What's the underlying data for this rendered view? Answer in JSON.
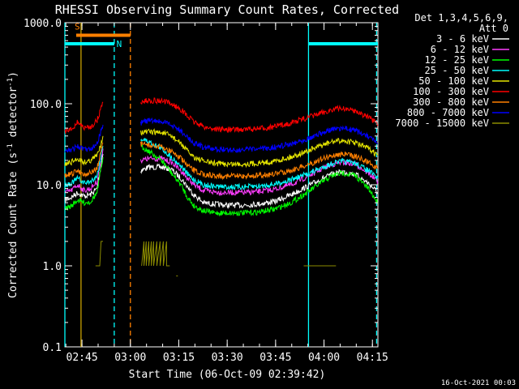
{
  "chart_data": {
    "type": "line",
    "title": "RHESSI Observing Summary Count Rates, Corrected",
    "xlabel": "Start Time (06-Oct-09 02:39:42)",
    "ylabel": "Corrected Count Rate (s⁻¹ detector⁻¹)",
    "ylabel_parts": {
      "main": "Corrected Count Rate (s",
      "exp1": "-1",
      "mid": " detector",
      "exp2": "-1",
      "end": ")"
    },
    "yscale": "log",
    "ylim": [
      0.1,
      1000
    ],
    "xlim_minutes": [
      0,
      97
    ],
    "grid": false,
    "legend_position": "top-right",
    "legend_header": [
      "Det 1,3,4,5,6,9,",
      "Att 0"
    ],
    "y_ticks": [
      {
        "value": 1000,
        "label": "1000.0"
      },
      {
        "value": 100,
        "label": "100.0"
      },
      {
        "value": 10,
        "label": "10.0"
      },
      {
        "value": 1,
        "label": "1.0"
      },
      {
        "value": 0.1,
        "label": "0.1"
      }
    ],
    "x_ticks": [
      {
        "minutes": 5.3,
        "label": "02:45"
      },
      {
        "minutes": 20.3,
        "label": "03:00"
      },
      {
        "minutes": 35.3,
        "label": "03:15"
      },
      {
        "minutes": 50.3,
        "label": "03:30"
      },
      {
        "minutes": 65.3,
        "label": "03:45"
      },
      {
        "minutes": 80.3,
        "label": "04:00"
      },
      {
        "minutes": 95.3,
        "label": "04:15"
      }
    ],
    "series": [
      {
        "name": "3 - 6 keV",
        "color": "#ffffff",
        "segments": [
          {
            "x": [
              0,
              2,
              4,
              6,
              8,
              10,
              11.8
            ],
            "y": [
              6.5,
              7.0,
              8.0,
              7.2,
              7.6,
              9.0,
              24
            ]
          },
          {
            "x": [
              23.5,
              26,
              30,
              33,
              36,
              38,
              40,
              43,
              46,
              50,
              55,
              60,
              65,
              70,
              75,
              80,
              83,
              86,
              90,
              94,
              97
            ],
            "y": [
              15.0,
              16.5,
              16.5,
              15.5,
              12.0,
              9.5,
              7.5,
              6.0,
              5.8,
              5.6,
              5.6,
              5.8,
              6.2,
              7.5,
              9.5,
              12.0,
              13.5,
              14.5,
              13.5,
              10.5,
              8.0
            ]
          }
        ]
      },
      {
        "name": "6 - 12 keV",
        "color": "#ff3dff",
        "segments": [
          {
            "x": [
              0,
              2,
              4,
              6,
              8,
              10,
              11.8
            ],
            "y": [
              8.0,
              8.5,
              10.0,
              8.5,
              9.0,
              11.0,
              28
            ]
          },
          {
            "x": [
              23.5,
              26,
              30,
              33,
              36,
              38,
              40,
              43,
              46,
              50,
              55,
              60,
              65,
              70,
              75,
              80,
              83,
              86,
              90,
              94,
              97
            ],
            "y": [
              20,
              21,
              21,
              19,
              15,
              12,
              10,
              8.5,
              8.2,
              8.0,
              8.0,
              8.2,
              8.8,
              10,
              12.5,
              16,
              18,
              19,
              18,
              14,
              11
            ]
          }
        ]
      },
      {
        "name": "12 - 25 keV",
        "color": "#00ff00",
        "segments": [
          {
            "x": [
              0,
              2,
              4,
              6,
              8,
              10,
              11.8
            ],
            "y": [
              5.0,
              5.5,
              6.5,
              6.0,
              6.2,
              8.0,
              22
            ]
          },
          {
            "x": [
              23.5,
              26,
              30,
              33,
              36,
              38,
              40,
              43,
              46,
              50,
              55,
              60,
              65,
              70,
              75,
              80,
              83,
              86,
              90,
              94,
              97
            ],
            "y": [
              30,
              26,
              20,
              14,
              10,
              7.0,
              5.5,
              4.8,
              4.5,
              4.5,
              4.5,
              4.6,
              5.0,
              6.0,
              8.0,
              11,
              13,
              14,
              13,
              9,
              6
            ]
          }
        ]
      },
      {
        "name": "25 - 50 keV",
        "color": "#00ffff",
        "segments": [
          {
            "x": [
              0,
              2,
              4,
              6,
              8,
              10,
              11.8
            ],
            "y": [
              10,
              10.5,
              12,
              10.5,
              11,
              13,
              30
            ]
          },
          {
            "x": [
              23.5,
              26,
              30,
              33,
              36,
              38,
              40,
              43,
              46,
              50,
              55,
              60,
              65,
              70,
              75,
              80,
              83,
              86,
              90,
              94,
              97
            ],
            "y": [
              37,
              34,
              28,
              22,
              17,
              13.5,
              11.5,
              10,
              9.6,
              9.4,
              9.4,
              9.6,
              10.2,
              11.5,
              13.5,
              16.5,
              18.5,
              19.5,
              18.5,
              15,
              12
            ]
          }
        ]
      },
      {
        "name": "50 - 100 keV",
        "color": "#e6e600",
        "segments": [
          {
            "x": [
              0,
              2,
              4,
              6,
              8,
              10,
              11.8
            ],
            "y": [
              18,
              19,
              21,
              19,
              20,
              23,
              40
            ]
          },
          {
            "x": [
              23.5,
              26,
              30,
              33,
              36,
              38,
              40,
              43,
              46,
              50,
              55,
              60,
              65,
              70,
              75,
              80,
              83,
              86,
              90,
              94,
              97
            ],
            "y": [
              44,
              45,
              44,
              40,
              32,
              26,
              22,
              19.5,
              18.5,
              18,
              18,
              18.5,
              19.5,
              22,
              26,
              31,
              34,
              35,
              33,
              28,
              23
            ]
          }
        ]
      },
      {
        "name": "100 - 300 keV",
        "color": "#ff0000",
        "segments": [
          {
            "x": [
              0,
              2,
              4,
              6,
              8,
              10,
              11.8
            ],
            "y": [
              45,
              48,
              60,
              50,
              52,
              62,
              105
            ]
          },
          {
            "x": [
              23.5,
              26,
              30,
              33,
              36,
              38,
              40,
              43,
              46,
              50,
              55,
              60,
              65,
              70,
              75,
              80,
              83,
              86,
              90,
              94,
              97
            ],
            "y": [
              105,
              110,
              108,
              100,
              85,
              70,
              60,
              52,
              49,
              48,
              48,
              49,
              52,
              58,
              67,
              78,
              85,
              88,
              82,
              68,
              55
            ]
          }
        ]
      },
      {
        "name": "300 - 800 keV",
        "color": "#ff8000",
        "segments": [
          {
            "x": [
              0,
              2,
              4,
              6,
              8,
              10,
              11.8
            ],
            "y": [
              13,
              13.5,
              15,
              13.5,
              14,
              16,
              33
            ]
          },
          {
            "x": [
              23.5,
              26,
              30,
              33,
              36,
              38,
              40,
              43,
              46,
              50,
              55,
              60,
              65,
              70,
              75,
              80,
              83,
              86,
              90,
              94,
              97
            ],
            "y": [
              32,
              31,
              29,
              26,
              21,
              17,
              15,
              13.5,
              13,
              12.8,
              12.8,
              13,
              13.6,
              15,
              17.5,
              21,
              23,
              24,
              22.5,
              19,
              16
            ]
          }
        ]
      },
      {
        "name": "800 - 7000 keV",
        "color": "#0000ff",
        "segments": [
          {
            "x": [
              0,
              2,
              4,
              6,
              8,
              10,
              11.8
            ],
            "y": [
              26,
              27,
              30,
              27,
              28,
              33,
              55
            ]
          },
          {
            "x": [
              23.5,
              26,
              30,
              33,
              36,
              38,
              40,
              43,
              46,
              50,
              55,
              60,
              65,
              70,
              75,
              80,
              83,
              86,
              90,
              94,
              97
            ],
            "y": [
              58,
              62,
              60,
              55,
              46,
              38,
              33,
              29,
              27.5,
              27,
              27,
              27.5,
              29,
              32,
              37,
              44,
              48,
              50,
              47,
              39,
              32
            ]
          }
        ]
      },
      {
        "name": "7000 - 15000 keV",
        "color": "#8c8c00",
        "segments": [
          {
            "x": [
              9.5,
              10.8,
              11.2,
              11.8
            ],
            "y": [
              1.0,
              1.0,
              2.0,
              2.0
            ]
          },
          {
            "x": [
              23.8,
              24.5,
              24.5,
              25.2,
              25.2,
              26,
              26,
              26.8,
              26.8,
              27.5,
              27.5,
              28.5,
              28.5,
              29.5,
              29.5,
              30.5,
              30.5,
              31.5,
              31.5,
              32.5
            ],
            "y": [
              1.0,
              2.0,
              1.0,
              2.0,
              1.0,
              2.0,
              1.0,
              2.0,
              1.0,
              2.0,
              1.0,
              2.0,
              1.0,
              2.0,
              1.0,
              2.0,
              1.0,
              2.0,
              1.0,
              1.0
            ]
          },
          {
            "x": [
              34.5,
              35
            ],
            "y": [
              0.75,
              0.75
            ]
          },
          {
            "x": [
              74,
              84
            ],
            "y": [
              1.0,
              1.0
            ]
          }
        ]
      }
    ],
    "night_intervals": [
      {
        "start": 0,
        "end": 15.3,
        "level": 550,
        "label": "",
        "color": "#00ffff"
      },
      {
        "start": 75.5,
        "end": 97,
        "level": 550,
        "label": "",
        "color": "#00ffff"
      }
    ],
    "saa_interval": {
      "start": 3.5,
      "end": 20.3,
      "level": 700,
      "color": "#ff8000"
    },
    "interval_labels": [
      {
        "text": "S",
        "minutes": 3.0,
        "value": 820,
        "color": "#ff8000"
      },
      {
        "text": "N",
        "minutes": 16.0,
        "value": 500,
        "color": "#00ffff"
      }
    ],
    "vertical_markers": [
      {
        "minutes": 0,
        "color": "#00ffff",
        "style": "solid"
      },
      {
        "minutes": 5.0,
        "color": "#c8a000",
        "style": "solid"
      },
      {
        "minutes": 15.3,
        "color": "#00ffff",
        "style": "dashed"
      },
      {
        "minutes": 20.3,
        "color": "#ff8000",
        "style": "dashed"
      },
      {
        "minutes": 75.5,
        "color": "#00ffff",
        "style": "solid"
      },
      {
        "minutes": 96.6,
        "color": "#00ffff",
        "style": "dashed"
      }
    ],
    "footer_date": "16-Oct-2021 00:03"
  }
}
